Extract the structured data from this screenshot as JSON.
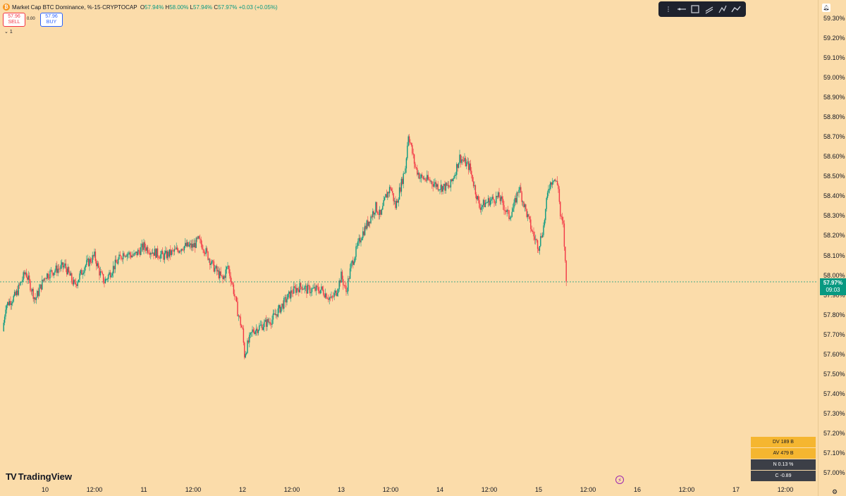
{
  "header": {
    "title": "Market Cap BTC Dominance, %",
    "interval": "15",
    "exchange": "CRYPTOCAP",
    "separator": " · ",
    "ohlc": {
      "o_label": "O",
      "o": "57.94%",
      "h_label": "H",
      "h": "58.00%",
      "l_label": "L",
      "l": "57.94%",
      "c_label": "C",
      "c": "57.97%",
      "change": "+0.03 (+0.05%)"
    }
  },
  "trade": {
    "sell_price": "57.96",
    "sell_label": "SELL",
    "spread": "0.00",
    "buy_price": "57.96",
    "buy_label": "BUY"
  },
  "collapse_label": "1",
  "icons": {
    "coin": "btc-coin-icon",
    "drawing_tools": [
      "drag-handle-icon",
      "horizontal-line-icon",
      "rectangle-icon",
      "parallel-channel-icon",
      "path-icon",
      "trend-line-icon"
    ]
  },
  "last_price": {
    "value": "57.97%",
    "countdown": "09:03"
  },
  "logo_text": "TradingView",
  "stats": [
    {
      "label": "DV",
      "value": "189 B"
    },
    {
      "label": "AV",
      "value": "479 B"
    },
    {
      "label": "N",
      "value": "0.13 %"
    },
    {
      "label": "C",
      "value": "-0.89"
    }
  ],
  "colors": {
    "background": "#fbdcaa",
    "up": "#089981",
    "down": "#f23645",
    "toolbar": "#1e222d"
  },
  "chart_data": {
    "type": "line",
    "symbol": "BTC Dominance",
    "y_unit": "%",
    "ylim": [
      57.0,
      59.3
    ],
    "y_ticks": [
      "59.30%",
      "59.20%",
      "59.10%",
      "59.00%",
      "58.90%",
      "58.80%",
      "58.70%",
      "58.60%",
      "58.50%",
      "58.40%",
      "58.30%",
      "58.20%",
      "58.10%",
      "58.00%",
      "57.90%",
      "57.80%",
      "57.70%",
      "57.60%",
      "57.50%",
      "57.40%",
      "57.30%",
      "57.20%",
      "57.10%",
      "57.00%"
    ],
    "x_ticks": [
      "10",
      "12:00",
      "11",
      "12:00",
      "12",
      "12:00",
      "13",
      "12:00",
      "14",
      "12:00",
      "15",
      "12:00",
      "16",
      "12:00",
      "17",
      "12:00"
    ],
    "last_value": 57.97,
    "series": [
      {
        "values": [
          [
            9.57,
            57.72
          ],
          [
            9.6,
            57.85
          ],
          [
            9.7,
            57.9
          ],
          [
            9.8,
            58.02
          ],
          [
            9.9,
            57.88
          ],
          [
            10.0,
            58.0
          ],
          [
            10.1,
            58.03
          ],
          [
            10.2,
            58.05
          ],
          [
            10.3,
            57.95
          ],
          [
            10.4,
            58.05
          ],
          [
            10.5,
            58.1
          ],
          [
            10.55,
            58.02
          ],
          [
            10.6,
            57.97
          ],
          [
            10.7,
            58.05
          ],
          [
            10.8,
            58.12
          ],
          [
            10.9,
            58.1
          ],
          [
            11.0,
            58.15
          ],
          [
            11.1,
            58.12
          ],
          [
            11.2,
            58.1
          ],
          [
            11.3,
            58.12
          ],
          [
            11.4,
            58.15
          ],
          [
            11.5,
            58.15
          ],
          [
            11.55,
            58.18
          ],
          [
            11.6,
            58.15
          ],
          [
            11.7,
            58.05
          ],
          [
            11.8,
            57.98
          ],
          [
            11.85,
            58.05
          ],
          [
            11.9,
            57.95
          ],
          [
            11.95,
            57.82
          ],
          [
            12.0,
            57.72
          ],
          [
            12.02,
            57.6
          ],
          [
            12.05,
            57.65
          ],
          [
            12.1,
            57.72
          ],
          [
            12.2,
            57.75
          ],
          [
            12.3,
            57.78
          ],
          [
            12.4,
            57.85
          ],
          [
            12.5,
            57.92
          ],
          [
            12.6,
            57.95
          ],
          [
            12.65,
            57.93
          ],
          [
            12.8,
            57.93
          ],
          [
            12.9,
            57.88
          ],
          [
            12.95,
            57.92
          ],
          [
            13.0,
            58.0
          ],
          [
            13.05,
            57.92
          ],
          [
            13.1,
            58.05
          ],
          [
            13.2,
            58.2
          ],
          [
            13.3,
            58.3
          ],
          [
            13.35,
            58.35
          ],
          [
            13.4,
            58.3
          ],
          [
            13.45,
            58.4
          ],
          [
            13.5,
            58.45
          ],
          [
            13.55,
            58.35
          ],
          [
            13.6,
            58.45
          ],
          [
            13.65,
            58.55
          ],
          [
            13.68,
            58.72
          ],
          [
            13.75,
            58.55
          ],
          [
            13.8,
            58.5
          ],
          [
            13.9,
            58.48
          ],
          [
            14.0,
            58.45
          ],
          [
            14.1,
            58.45
          ],
          [
            14.15,
            58.52
          ],
          [
            14.2,
            58.6
          ],
          [
            14.3,
            58.55
          ],
          [
            14.35,
            58.45
          ],
          [
            14.4,
            58.35
          ],
          [
            14.5,
            58.38
          ],
          [
            14.6,
            58.4
          ],
          [
            14.7,
            58.3
          ],
          [
            14.75,
            58.35
          ],
          [
            14.8,
            58.45
          ],
          [
            14.9,
            58.28
          ],
          [
            14.95,
            58.2
          ],
          [
            15.0,
            58.15
          ],
          [
            15.05,
            58.25
          ],
          [
            15.1,
            58.45
          ],
          [
            15.15,
            58.5
          ],
          [
            15.2,
            58.45
          ],
          [
            15.22,
            58.3
          ],
          [
            15.25,
            58.25
          ],
          [
            15.28,
            57.97
          ]
        ]
      }
    ]
  }
}
